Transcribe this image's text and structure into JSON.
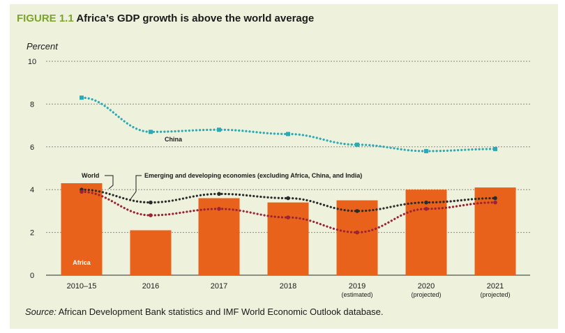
{
  "figure": {
    "label": "FIGURE 1.1",
    "title": "Africa’s GDP growth is above the world average"
  },
  "source": {
    "label": "Source:",
    "text": "African Development Bank statistics and IMF World Economic Outlook database."
  },
  "chart_data": {
    "type": "bar",
    "ylabel": "Percent",
    "ylim": [
      0,
      10
    ],
    "yticks": [
      0,
      2,
      4,
      6,
      8,
      10
    ],
    "grid": true,
    "categories": [
      "2010–15",
      "2016",
      "2017",
      "2018",
      "2019",
      "2020",
      "2021"
    ],
    "category_sublabels": [
      "",
      "",
      "",
      "",
      "(estimated)",
      "(projected)",
      "(projected)"
    ],
    "series": [
      {
        "name": "Africa",
        "type": "bar",
        "color": "#e8621c",
        "values": [
          4.3,
          2.1,
          3.6,
          3.4,
          3.5,
          4.0,
          4.1
        ]
      },
      {
        "name": "China",
        "type": "line",
        "style": "dotted",
        "color": "#2aaab5",
        "values": [
          8.3,
          6.7,
          6.8,
          6.6,
          6.1,
          5.8,
          5.9
        ]
      },
      {
        "name": "World",
        "type": "line",
        "style": "dotted",
        "color": "#2b2b2b",
        "values": [
          4.0,
          3.4,
          3.8,
          3.6,
          3.0,
          3.4,
          3.6
        ]
      },
      {
        "name": "Emerging and developing economies (excluding Africa, China, and India)",
        "type": "line",
        "style": "dotted",
        "color": "#9b2335",
        "values": [
          3.9,
          2.8,
          3.1,
          2.7,
          2.0,
          3.1,
          3.4
        ]
      }
    ],
    "annotations": {
      "bar_label": "Africa",
      "china_label": "China",
      "world_label": "World",
      "emerging_label": "Emerging and developing economies (excluding Africa, China, and India)"
    }
  }
}
